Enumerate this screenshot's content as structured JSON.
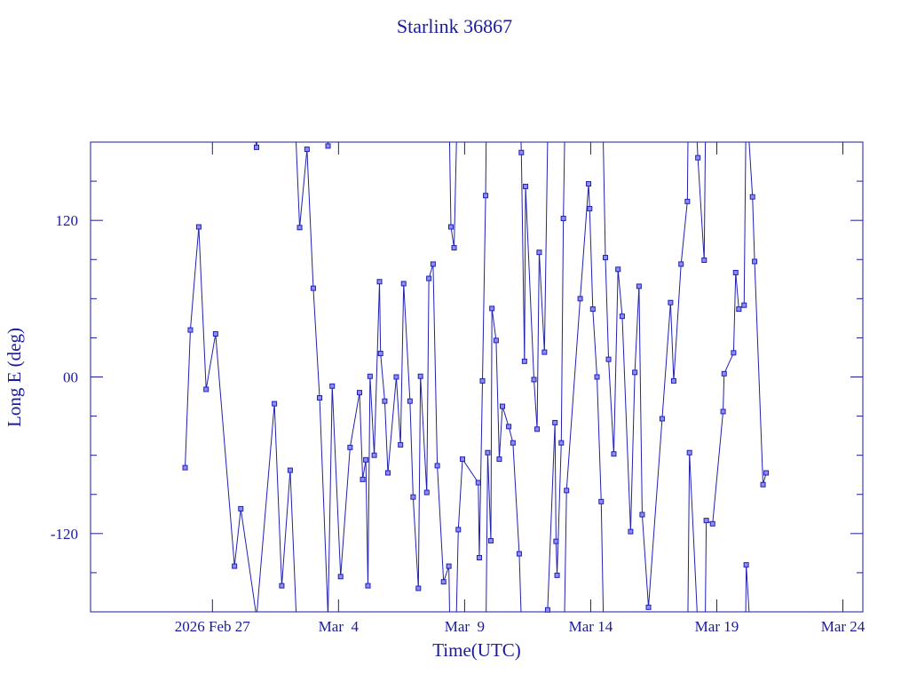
{
  "chart_data": {
    "type": "line",
    "title": "Starlink 36867",
    "x_label": "Time(UTC)",
    "y_label": "Long E (deg)",
    "color": "#2020b0",
    "xlim": [
      "2026-02-22T04:00",
      "2026-03-24T19:00"
    ],
    "xticks": [
      {
        "value": "2026-02-27",
        "label": "2026 Feb 27"
      },
      {
        "value": "2026-03-04",
        "label": "Mar  4"
      },
      {
        "value": "2026-03-09",
        "label": "Mar  9"
      },
      {
        "value": "2026-03-14",
        "label": "Mar 14"
      },
      {
        "value": "2026-03-19",
        "label": "Mar 19"
      },
      {
        "value": "2026-03-24",
        "label": "Mar 24"
      }
    ],
    "ylim": [
      -180,
      180
    ],
    "yticks": [
      -120,
      {
        "value": 0,
        "label": "00"
      },
      120
    ],
    "yticks_minor": [
      -150,
      -90,
      -60,
      -30,
      30,
      60,
      90,
      150
    ],
    "series": [
      {
        "name": "Long E",
        "x": [
          "2026-02-25T22:00",
          "2026-02-26T03:00",
          "2026-02-26T11:00",
          "2026-02-26T18:00",
          "2026-02-27T03:00",
          "2026-02-27T21:00",
          "2026-02-28T03:00",
          "2026-02-28T18:00",
          "2026-03-01T11:00",
          "2026-03-01T18:00",
          "2026-03-02T02:00",
          "2026-03-02T11:00",
          "2026-03-02T18:00",
          "2026-03-03T00:00",
          "2026-03-03T06:00",
          "2026-03-03T14:00",
          "2026-03-03T18:00",
          "2026-03-04T02:00",
          "2026-03-04T11:00",
          "2026-03-04T20:00",
          "2026-03-04T23:00",
          "2026-03-05T02:00",
          "2026-03-05T04:00",
          "2026-03-05T06:00",
          "2026-03-05T10:00",
          "2026-03-05T15:00",
          "2026-03-05T16:00",
          "2026-03-05T20:00",
          "2026-03-05T23:00",
          "2026-03-06T07:00",
          "2026-03-06T11:00",
          "2026-03-06T14:00",
          "2026-03-06T20:00",
          "2026-03-06T23:00",
          "2026-03-07T04:00",
          "2026-03-07T06:00",
          "2026-03-07T12:00",
          "2026-03-07T14:00",
          "2026-03-07T18:00",
          "2026-03-07T22:00",
          "2026-03-08T04:00",
          "2026-03-08T09:00",
          "2026-03-08T11:00",
          "2026-03-08T14:00",
          "2026-03-08T18:00",
          "2026-03-08T22:00",
          "2026-03-09T13:00",
          "2026-03-09T14:00",
          "2026-03-09T17:00",
          "2026-03-09T20:00",
          "2026-03-09T22:00",
          "2026-03-10T01:00",
          "2026-03-10T02:00",
          "2026-03-10T06:00",
          "2026-03-10T09:00",
          "2026-03-10T12:00",
          "2026-03-10T18:00",
          "2026-03-10T22:00",
          "2026-03-11T04:00",
          "2026-03-11T06:00",
          "2026-03-11T09:00",
          "2026-03-11T10:00",
          "2026-03-11T18:00",
          "2026-03-11T21:00",
          "2026-03-11T23:00",
          "2026-03-12T04:00",
          "2026-03-12T07:00",
          "2026-03-12T14:00",
          "2026-03-12T15:00",
          "2026-03-12T16:00",
          "2026-03-12T20:00",
          "2026-03-12T22:00",
          "2026-03-13T01:00",
          "2026-03-13T14:00",
          "2026-03-13T22:00",
          "2026-03-13T23:00",
          "2026-03-14T02:00",
          "2026-03-14T06:00",
          "2026-03-14T10:00",
          "2026-03-14T14:00",
          "2026-03-14T17:00",
          "2026-03-14T22:00",
          "2026-03-15T02:00",
          "2026-03-15T06:00",
          "2026-03-15T14:00",
          "2026-03-15T18:00",
          "2026-03-15T22:00",
          "2026-03-16T01:00",
          "2026-03-16T07:00",
          "2026-03-16T20:00",
          "2026-03-17T04:00",
          "2026-03-17T07:00",
          "2026-03-17T14:00",
          "2026-03-17T20:00",
          "2026-03-17T22:00",
          "2026-03-18T06:00",
          "2026-03-18T12:00",
          "2026-03-18T14:00",
          "2026-03-18T20:00",
          "2026-03-19T06:00",
          "2026-03-19T07:00",
          "2026-03-19T16:00",
          "2026-03-19T18:00",
          "2026-03-19T21:00",
          "2026-03-20T02:00",
          "2026-03-20T04:00",
          "2026-03-20T10:00",
          "2026-03-20T12:00",
          "2026-03-20T20:00",
          "2026-03-20T23:00"
        ],
        "values": [
          -69.5,
          36,
          115,
          -9.5,
          33,
          -145,
          -101,
          176,
          -20.5,
          -160,
          -71.5,
          114.5,
          174.5,
          68,
          -16,
          177,
          -7,
          -153,
          -54,
          -12,
          -78.5,
          -63.5,
          -160,
          0.5,
          -60,
          73,
          18,
          -18.5,
          -73.5,
          0,
          -52,
          71.5,
          -18.5,
          -92,
          -162,
          0.5,
          -88.5,
          75.5,
          86.5,
          -68,
          -157,
          -145,
          115,
          99,
          -117,
          -63,
          -81,
          -138.5,
          -3,
          139,
          -58,
          -125.5,
          52.5,
          28,
          -63,
          -22.5,
          -38,
          -50.5,
          -135.5,
          172,
          12,
          146,
          -2,
          -40,
          95.5,
          19,
          -178.5,
          -35,
          -126,
          -152,
          -50.5,
          121.5,
          -87,
          60,
          148,
          129,
          52,
          0,
          -95.5,
          91.5,
          13.5,
          -59,
          82.5,
          46.5,
          -118.5,
          3.5,
          69.5,
          -105.5,
          -176.5,
          -32,
          57,
          -3,
          86.5,
          134.5,
          -58,
          168,
          89.5,
          -110,
          -112.5,
          -26.5,
          2.5,
          18.5,
          80,
          52,
          55,
          -144,
          138,
          88.5,
          -82.5,
          -73.5
        ]
      }
    ]
  }
}
